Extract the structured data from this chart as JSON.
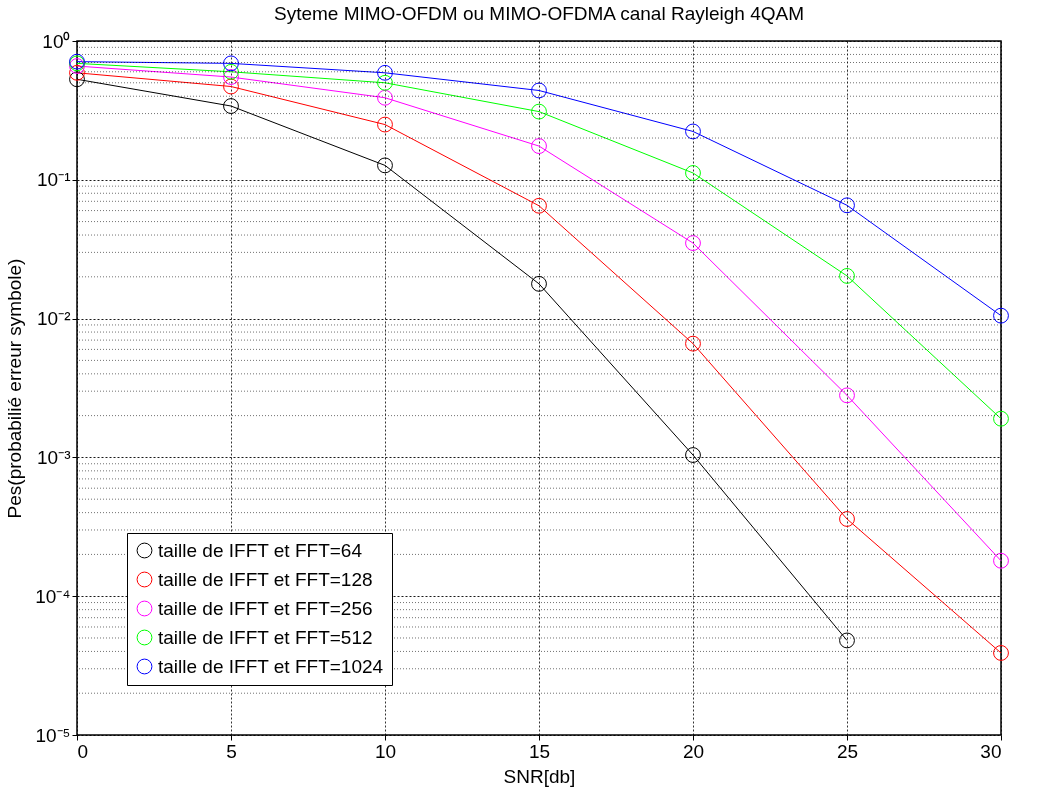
{
  "chart_data": {
    "type": "line",
    "title": "Syteme MIMO-OFDM ou MIMO-OFDMA canal Rayleigh 4QAM",
    "xlabel": "SNR[db]",
    "ylabel": "Pes(probabilié erreur symbole)",
    "x": [
      0,
      5,
      10,
      15,
      20,
      25,
      30
    ],
    "series": [
      {
        "name": "taille de IFFT et FFT=64",
        "color": "#000000",
        "values": [
          0.53,
          0.34,
          0.127,
          0.0178,
          0.00104,
          4.8e-05,
          null
        ]
      },
      {
        "name": "taille de IFFT et FFT=128",
        "color": "#ff0000",
        "values": [
          0.59,
          0.47,
          0.25,
          0.065,
          0.0066,
          0.00036,
          3.9e-05
        ]
      },
      {
        "name": "taille de IFFT et FFT=256",
        "color": "#ff00ff",
        "values": [
          0.66,
          0.55,
          0.39,
          0.175,
          0.035,
          0.0028,
          0.00018
        ]
      },
      {
        "name": "taille de IFFT et FFT=512",
        "color": "#00ff00",
        "values": [
          0.69,
          0.6,
          0.5,
          0.31,
          0.112,
          0.0203,
          0.0019
        ]
      },
      {
        "name": "taille de IFFT et FFT=1024",
        "color": "#0000ff",
        "values": [
          0.71,
          0.69,
          0.59,
          0.44,
          0.223,
          0.0655,
          0.0105
        ]
      }
    ],
    "xlim": [
      0,
      30
    ],
    "xticks": [
      0,
      5,
      10,
      15,
      20,
      25,
      30
    ],
    "ylim": [
      1e-05,
      1
    ],
    "yticks": [
      {
        "value": 1e-05,
        "label": "10⁻⁵"
      },
      {
        "value": 0.0001,
        "label": "10⁻⁴"
      },
      {
        "value": 0.001,
        "label": "10⁻³"
      },
      {
        "value": 0.01,
        "label": "10⁻²"
      },
      {
        "value": 0.1,
        "label": "10⁻¹"
      },
      {
        "value": 1,
        "label": "10⁰"
      }
    ],
    "log": "y",
    "grid": true,
    "legend": "bottom left",
    "marker": "circle",
    "line_style": "solid"
  }
}
